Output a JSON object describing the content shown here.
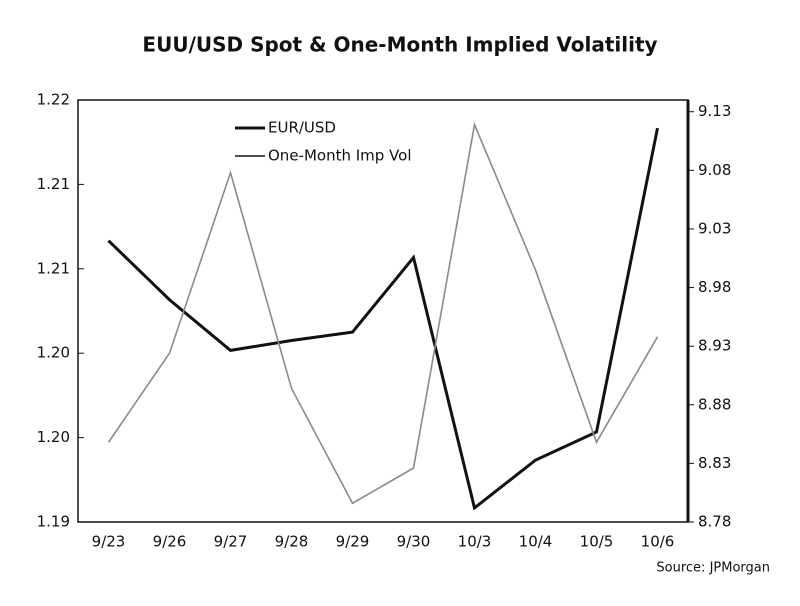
{
  "chart_data": {
    "type": "line",
    "title": "EUU/USD Spot & One-Month Implied Volatility",
    "source": "Source: JPMorgan",
    "categories": [
      "9/23",
      "9/26",
      "9/27",
      "9/28",
      "9/29",
      "9/30",
      "10/3",
      "10/4",
      "10/5",
      "10/6"
    ],
    "series": [
      {
        "name": "EUR/USD",
        "color": "#111111",
        "width": 3,
        "axis": "y",
        "values": [
          1.21,
          1.2058,
          1.2022,
          1.2029,
          1.2035,
          1.2088,
          1.191,
          1.1944,
          1.1964,
          1.218
        ]
      },
      {
        "name": "One-Month Imp Vol",
        "color": "#8a8a8a",
        "width": 1.6,
        "axis": "y2",
        "values": [
          8.848,
          8.924,
          9.078,
          8.894,
          8.796,
          8.826,
          9.119,
          8.995,
          8.848,
          8.938
        ]
      }
    ],
    "ylim": [
      1.19,
      1.22
    ],
    "yticks": [
      {
        "value": 1.22,
        "label": "1.22"
      },
      {
        "value": 1.214,
        "label": "1.21"
      },
      {
        "value": 1.208,
        "label": "1.21"
      },
      {
        "value": 1.202,
        "label": "1.20"
      },
      {
        "value": 1.196,
        "label": "1.20"
      },
      {
        "value": 1.19,
        "label": "1.19"
      }
    ],
    "y2lim": [
      8.78,
      9.14
    ],
    "y2ticks": [
      9.13,
      9.08,
      9.03,
      8.98,
      8.93,
      8.88,
      8.83,
      8.78
    ]
  }
}
